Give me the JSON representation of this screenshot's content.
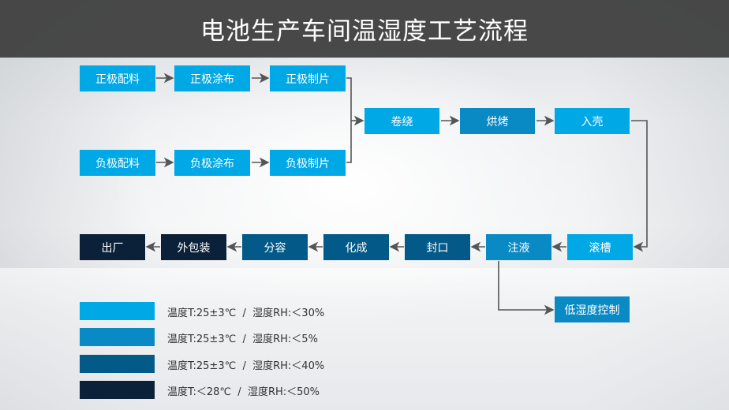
{
  "title": "电池生产车间温湿度工艺流程",
  "colors": {
    "level1": "#00a8e6",
    "level2": "#0a8ac4",
    "level3": "#035a88",
    "level4": "#0b2139",
    "connector": "#555555"
  },
  "steps": {
    "pos_mix": "正极配料",
    "pos_coat": "正极涂布",
    "pos_cut": "正极制片",
    "neg_mix": "负极配料",
    "neg_coat": "负极涂布",
    "neg_cut": "负极制片",
    "wind": "卷绕",
    "bake": "烘烤",
    "case": "入壳",
    "groove": "滚槽",
    "inject": "注液",
    "seal": "封口",
    "form": "化成",
    "grade": "分容",
    "pack": "外包装",
    "ship": "出厂",
    "low_hum": "低湿度控制"
  },
  "legend": [
    {
      "text": "温度T:25±3℃  /  湿度RH:＜30%",
      "color": "#00a8e6"
    },
    {
      "text": "温度T:25±3℃  /  湿度RH:＜5%",
      "color": "#0a8ac4"
    },
    {
      "text": "温度T:25±3℃  /  湿度RH:＜40%",
      "color": "#035a88"
    },
    {
      "text": "温度T:＜28℃  /  湿度RH:＜50%",
      "color": "#0b2139"
    }
  ]
}
